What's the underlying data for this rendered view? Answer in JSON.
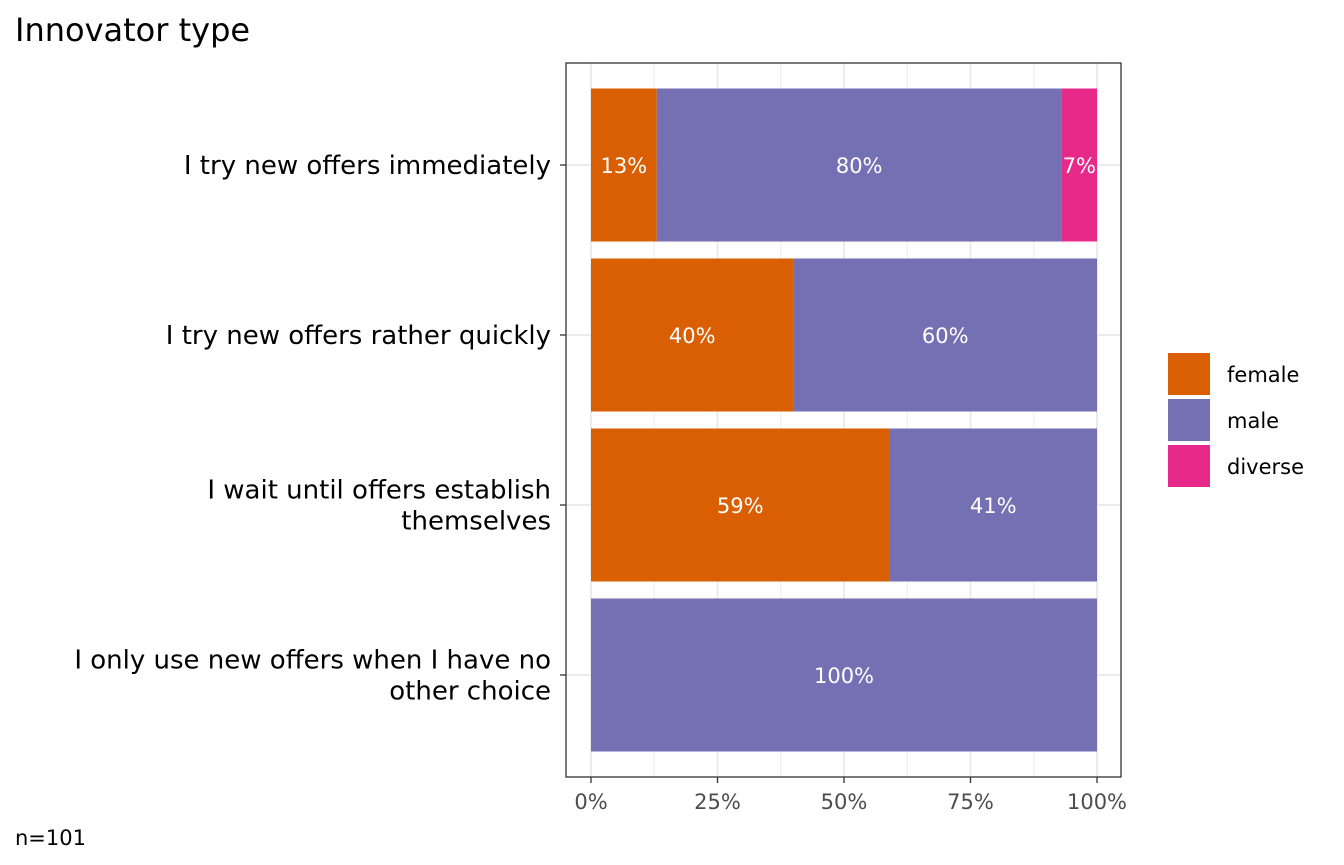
{
  "chart_data": {
    "type": "bar",
    "orientation": "horizontal",
    "stacked": true,
    "title": "Innovator type",
    "caption": "n=101",
    "categories": [
      [
        "I try new offers immediately"
      ],
      [
        "I try new offers rather quickly"
      ],
      [
        "I wait until offers establish",
        "themselves"
      ],
      [
        "I only use new offers when I have no",
        "other choice"
      ]
    ],
    "series": [
      {
        "name": "female",
        "color": "#D95F02",
        "values": [
          13,
          40,
          59,
          0
        ],
        "labels": [
          "13%",
          "40%",
          "59%",
          ""
        ]
      },
      {
        "name": "male",
        "color": "#7570B3",
        "values": [
          80,
          60,
          41,
          100
        ],
        "labels": [
          "80%",
          "60%",
          "41%",
          "100%"
        ]
      },
      {
        "name": "diverse",
        "color": "#E7298A",
        "values": [
          7,
          0,
          0,
          0
        ],
        "labels": [
          "7%",
          "",
          "",
          ""
        ]
      }
    ],
    "xlim": [
      0,
      100
    ],
    "xticks": [
      0,
      25,
      50,
      75,
      100
    ],
    "xtick_labels": [
      "0%",
      "25%",
      "50%",
      "75%",
      "100%"
    ],
    "grid": true,
    "legend": {
      "placement": "right",
      "entries": [
        "female",
        "male",
        "diverse"
      ]
    }
  }
}
